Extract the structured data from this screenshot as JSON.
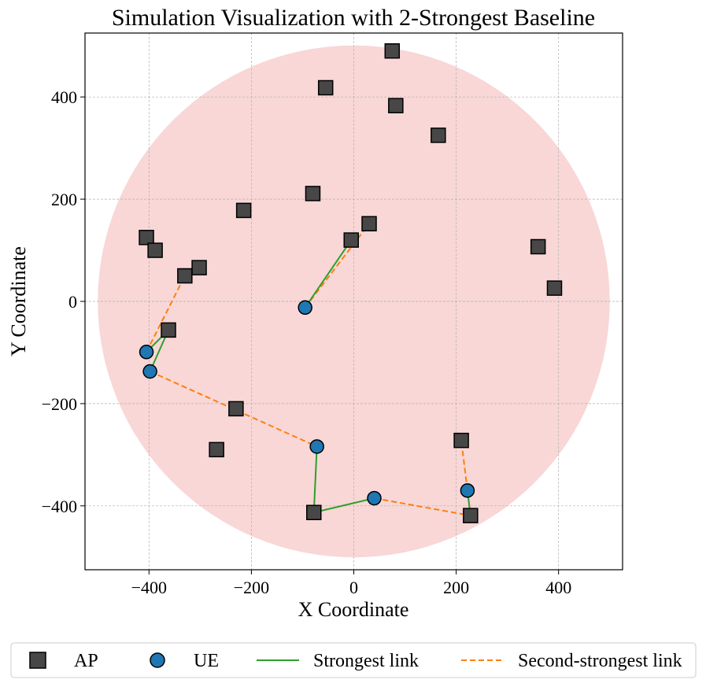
{
  "chart_data": {
    "type": "scatter",
    "title": "Simulation Visualization with 2-Strongest Baseline",
    "xlabel": "X Coordinate",
    "ylabel": "Y Coordinate",
    "xlim": [
      -525,
      525
    ],
    "ylim": [
      -525,
      525
    ],
    "xticks": [
      -400,
      -200,
      0,
      200,
      400
    ],
    "yticks": [
      -400,
      -200,
      0,
      200,
      400
    ],
    "xtick_labels": [
      "−400",
      "−200",
      "0",
      "200",
      "400"
    ],
    "ytick_labels": [
      "−400",
      "−200",
      "0",
      "200",
      "400"
    ],
    "grid": true,
    "coverage_circle": {
      "center": [
        0,
        0
      ],
      "radius": 500,
      "color": "#f8d7d6"
    },
    "colors": {
      "ap_fill": "#474747",
      "ue_fill": "#1f77b4",
      "strongest": "#2ca02c",
      "second": "#ff7f0e"
    },
    "aps": [
      {
        "x": 75,
        "y": 490
      },
      {
        "x": -55,
        "y": 418
      },
      {
        "x": 82,
        "y": 383
      },
      {
        "x": 165,
        "y": 325
      },
      {
        "x": -80,
        "y": 211
      },
      {
        "x": -215,
        "y": 178
      },
      {
        "x": 30,
        "y": 152
      },
      {
        "x": -5,
        "y": 120
      },
      {
        "x": -405,
        "y": 125
      },
      {
        "x": -388,
        "y": 100
      },
      {
        "x": -302,
        "y": 66
      },
      {
        "x": -330,
        "y": 50
      },
      {
        "x": 360,
        "y": 107
      },
      {
        "x": 392,
        "y": 26
      },
      {
        "x": -362,
        "y": -56
      },
      {
        "x": -230,
        "y": -210
      },
      {
        "x": -268,
        "y": -290
      },
      {
        "x": 210,
        "y": -272
      },
      {
        "x": -78,
        "y": -413
      },
      {
        "x": 228,
        "y": -419
      }
    ],
    "ues": [
      {
        "x": -95,
        "y": -12
      },
      {
        "x": -405,
        "y": -99
      },
      {
        "x": -398,
        "y": -137
      },
      {
        "x": -72,
        "y": -284
      },
      {
        "x": 40,
        "y": -385
      },
      {
        "x": 222,
        "y": -370
      }
    ],
    "strongest_links": [
      {
        "from": [
          -95,
          -12
        ],
        "to": [
          -5,
          120
        ]
      },
      {
        "from": [
          -405,
          -99
        ],
        "to": [
          -362,
          -56
        ]
      },
      {
        "from": [
          -398,
          -137
        ],
        "to": [
          -362,
          -56
        ]
      },
      {
        "from": [
          -72,
          -284
        ],
        "to": [
          -78,
          -413
        ]
      },
      {
        "from": [
          40,
          -385
        ],
        "to": [
          -78,
          -413
        ]
      },
      {
        "from": [
          222,
          -370
        ],
        "to": [
          228,
          -419
        ]
      }
    ],
    "second_links": [
      {
        "from": [
          -95,
          -12
        ],
        "to": [
          30,
          152
        ]
      },
      {
        "from": [
          -405,
          -99
        ],
        "to": [
          -330,
          50
        ]
      },
      {
        "from": [
          -398,
          -137
        ],
        "to": [
          -72,
          -284
        ]
      },
      {
        "from": [
          40,
          -385
        ],
        "to": [
          228,
          -419
        ]
      },
      {
        "from": [
          222,
          -370
        ],
        "to": [
          210,
          -272
        ]
      }
    ],
    "legend": {
      "placement": "bottom-center",
      "entries": [
        {
          "label": "AP",
          "marker": "square"
        },
        {
          "label": "UE",
          "marker": "circle"
        },
        {
          "label": "Strongest link",
          "marker": "solid-line"
        },
        {
          "label": "Second-strongest link",
          "marker": "dashed-line"
        }
      ]
    }
  }
}
